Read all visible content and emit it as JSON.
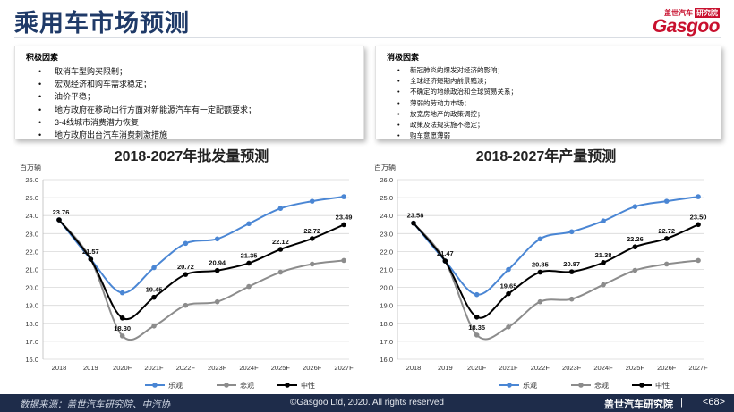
{
  "page": {
    "title": "乘用车市场预测",
    "logo_top": "盖世汽车",
    "logo_tag": "研究院",
    "logo_main": "Gasgoo"
  },
  "positive": {
    "title": "积极因素",
    "items": [
      "取消车型购买限制；",
      "宏观经济和购车需求稳定；",
      "油价平稳；",
      "地方政府在移动出行方面对新能源汽车有一定配额要求；",
      "3-4线城市消费潜力恢复",
      "地方政府出台汽车消费刺激措施"
    ]
  },
  "negative": {
    "title": "消极因素",
    "items": [
      "新冠肺炎的爆发对经济的影响；",
      "全球经济短期内前景黯淡；",
      "不确定的地缘政治和全球贸易关系；",
      "薄弱的劳动力市场；",
      "放宽房地产的政策调控；",
      "政策及法规实施不稳定；",
      "购车意愿薄弱"
    ]
  },
  "chart_data": [
    {
      "type": "line",
      "title": "2018-2027年批发量预测",
      "ylabel": "百万辆",
      "categories": [
        "2018",
        "2019",
        "2020F",
        "2021F",
        "2022F",
        "2023F",
        "2024F",
        "2025F",
        "2026F",
        "2027F"
      ],
      "ylim": [
        16.0,
        26.0
      ],
      "yticks": [
        "16.0",
        "17.0",
        "18.0",
        "19.0",
        "20.0",
        "21.0",
        "22.0",
        "23.0",
        "24.0",
        "25.0",
        "26.0"
      ],
      "grid": true,
      "legend": "bottom",
      "series": [
        {
          "name": "乐观",
          "color": "#4a86d4",
          "values": [
            23.76,
            21.57,
            19.7,
            21.1,
            22.45,
            22.7,
            23.55,
            24.4,
            24.8,
            25.05
          ]
        },
        {
          "name": "悲观",
          "color": "#8c8c8c",
          "values": [
            23.76,
            21.57,
            17.3,
            17.85,
            19.0,
            19.2,
            20.05,
            20.85,
            21.3,
            21.5
          ]
        },
        {
          "name": "中性",
          "color": "#000000",
          "values": [
            23.76,
            21.57,
            18.3,
            19.45,
            20.72,
            20.94,
            21.35,
            22.12,
            22.72,
            23.49
          ],
          "labels": [
            "23.76",
            "21.57",
            "18.30",
            "19.45",
            "20.72",
            "20.94",
            "21.35",
            "22.12",
            "22.72",
            "23.49"
          ]
        }
      ]
    },
    {
      "type": "line",
      "title": "2018-2027年产量预测",
      "ylabel": "百万辆",
      "categories": [
        "2018",
        "2019",
        "2020F",
        "2021F",
        "2022F",
        "2023F",
        "2024F",
        "2025F",
        "2026F",
        "2027F"
      ],
      "ylim": [
        16.0,
        26.0
      ],
      "yticks": [
        "16.0",
        "17.0",
        "18.0",
        "19.0",
        "20.0",
        "21.0",
        "22.0",
        "23.0",
        "24.0",
        "25.0",
        "26.0"
      ],
      "grid": true,
      "legend": "bottom",
      "series": [
        {
          "name": "乐观",
          "color": "#4a86d4",
          "values": [
            23.58,
            21.47,
            19.6,
            21.0,
            22.7,
            23.1,
            23.7,
            24.5,
            24.8,
            25.05
          ]
        },
        {
          "name": "悲观",
          "color": "#8c8c8c",
          "values": [
            23.58,
            21.47,
            17.35,
            17.8,
            19.2,
            19.35,
            20.15,
            20.95,
            21.3,
            21.5
          ]
        },
        {
          "name": "中性",
          "color": "#000000",
          "values": [
            23.58,
            21.47,
            18.35,
            19.65,
            20.85,
            20.87,
            21.38,
            22.26,
            22.72,
            23.5
          ],
          "labels": [
            "23.58",
            "21.47",
            "18.35",
            "19.65",
            "20.85",
            "20.87",
            "21.38",
            "22.26",
            "22.72",
            "23.50"
          ]
        }
      ]
    }
  ],
  "footer": {
    "source": "数据来源：盖世汽车研究院、中汽协",
    "copyright": "©Gasgoo Ltd, 2020. All rights reserved",
    "brand": "盖世汽车研究院",
    "separator": "|",
    "page": "<68>"
  }
}
